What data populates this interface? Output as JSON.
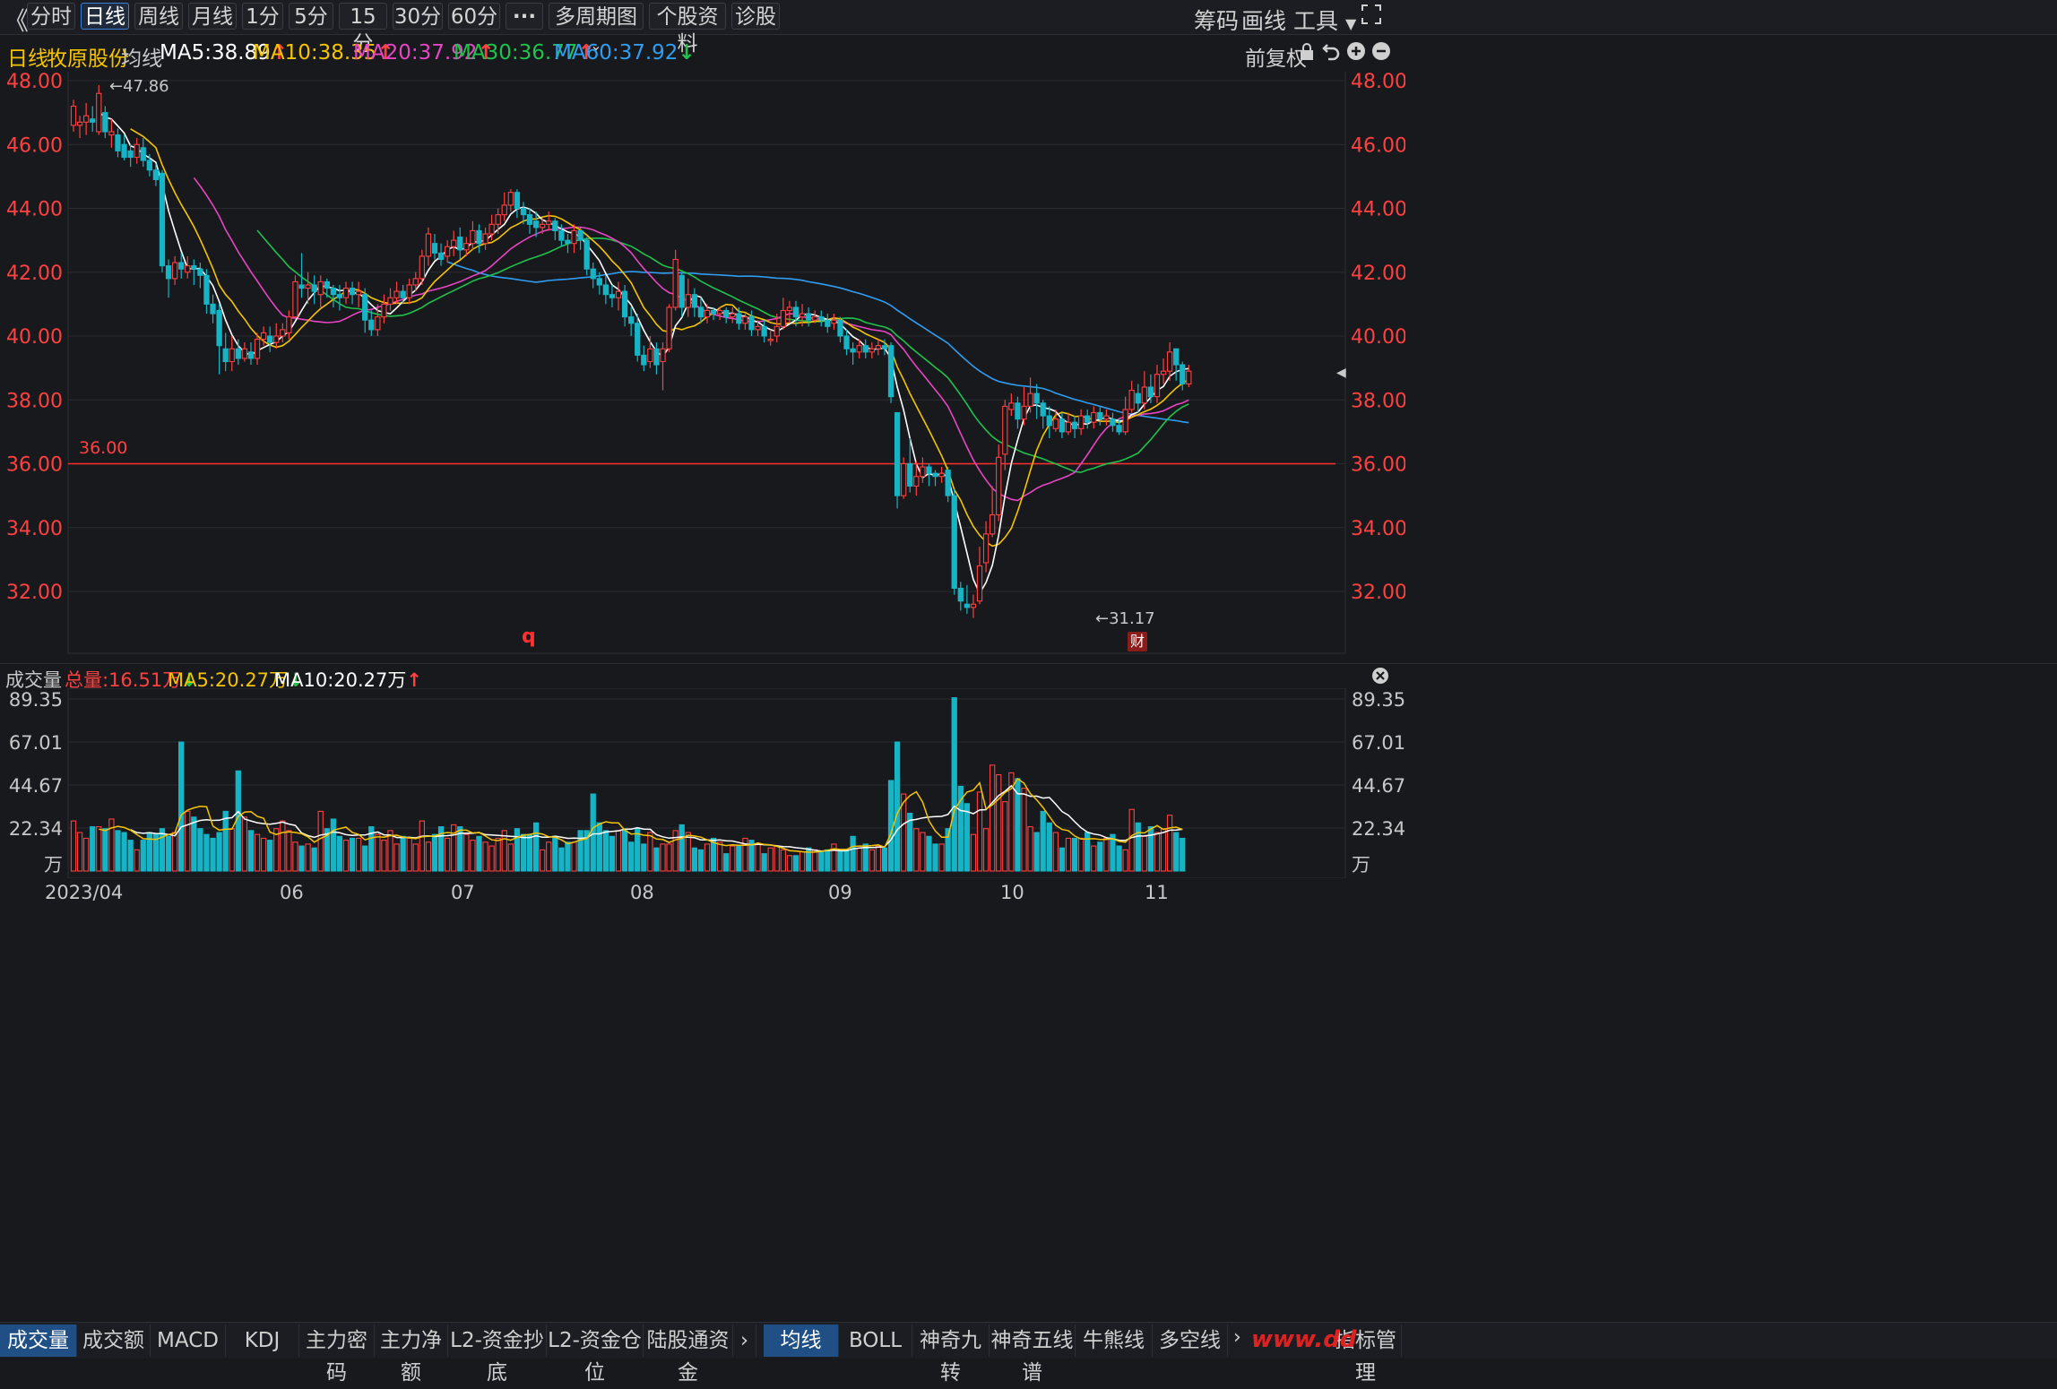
{
  "toolbar": {
    "back_icon": "double-chevron-left-icon",
    "periods": [
      "分时",
      "日线",
      "周线",
      "月线",
      "1分",
      "5分",
      "15分",
      "30分",
      "60分"
    ],
    "active_period": "日线",
    "more_label": "···",
    "multi_period_label": "多周期图",
    "profile_label": "个股资料",
    "diagnose_label": "诊股",
    "chips_label": "筹码",
    "draw_label": "画线",
    "tools_label": "工具"
  },
  "ma_bar": {
    "period": "日线",
    "stock_name": "牧原股份",
    "ma_title": "均线",
    "ma5": "MA5:38.89",
    "ma10": "MA10:38.35",
    "ma20": "MA20:37.92",
    "ma30": "MA30:36.77",
    "ma60": "MA60:37.92",
    "adjust_label": "前复权"
  },
  "price_axis": [
    "48.00",
    "46.00",
    "44.00",
    "42.00",
    "40.00",
    "38.00",
    "36.00",
    "34.00",
    "32.00"
  ],
  "annotations": {
    "high": "47.86",
    "low": "31.17",
    "line_value": "36.00",
    "marker_q": "q",
    "finance_badge": "财"
  },
  "volume_bar": {
    "title": "成交量",
    "total": "总量:16.51万",
    "ma5": "MA5:20.27万",
    "ma10": "MA10:20.27万"
  },
  "volume_axis": [
    "89.35",
    "67.01",
    "44.67",
    "22.34",
    "万"
  ],
  "date_axis": [
    "2023/04",
    "06",
    "07",
    "08",
    "09",
    "10",
    "11"
  ],
  "bottom_tabs_left": [
    "成交量",
    "成交额",
    "MACD",
    "KDJ",
    "主力密码",
    "主力净额",
    "L2-资金抄底",
    "L2-资金仓位",
    "陆股通资金"
  ],
  "bottom_tabs_right": [
    "均线",
    "BOLL",
    "神奇九转",
    "神奇五线谱",
    "牛熊线",
    "多空线",
    "指标管理"
  ],
  "watermark": "www.dd",
  "colors": {
    "up": "#ff4040",
    "down": "#17b4c6",
    "ma5": "#ffffff",
    "ma10": "#f5c400",
    "ma20": "#e845c4",
    "ma30": "#1fc24c",
    "ma60": "#2f9ef2",
    "grid": "#2a2c31",
    "hline": "#ff3030"
  },
  "chart_data": {
    "type": "candlestick",
    "title": "牧原股份 日线",
    "ylim": [
      30.6,
      48.6
    ],
    "vol_ylim": [
      0,
      89.35
    ],
    "x_ticks": [
      "2023/04",
      "06",
      "07",
      "08",
      "09",
      "10",
      "11"
    ],
    "hline": 36.0,
    "candles": [
      [
        46.6,
        47.2,
        47.4,
        46.4
      ],
      [
        46.6,
        46.7,
        46.9,
        46.2
      ],
      [
        46.7,
        46.9,
        47.3,
        46.3
      ],
      [
        46.8,
        46.7,
        47.2,
        46.4
      ],
      [
        46.4,
        47.6,
        47.86,
        46.3
      ],
      [
        47.0,
        46.4,
        47.2,
        46.2
      ],
      [
        46.3,
        46.4,
        46.8,
        45.9
      ],
      [
        46.3,
        45.8,
        46.5,
        45.6
      ],
      [
        46.0,
        45.6,
        46.3,
        45.5
      ],
      [
        45.8,
        45.6,
        46.0,
        45.3
      ],
      [
        45.6,
        46.0,
        46.2,
        45.4
      ],
      [
        45.9,
        45.5,
        46.2,
        45.3
      ],
      [
        45.5,
        45.2,
        45.7,
        45.0
      ],
      [
        45.2,
        44.9,
        45.4,
        44.7
      ],
      [
        45.1,
        42.2,
        45.2,
        42.0
      ],
      [
        42.2,
        41.8,
        42.4,
        41.2
      ],
      [
        41.8,
        42.3,
        42.5,
        41.6
      ],
      [
        42.3,
        42.1,
        42.6,
        41.8
      ],
      [
        42.0,
        42.2,
        42.5,
        41.8
      ],
      [
        42.2,
        42.1,
        42.4,
        41.6
      ],
      [
        42.1,
        41.9,
        42.3,
        41.5
      ],
      [
        41.9,
        41.0,
        42.1,
        40.7
      ],
      [
        41.0,
        40.7,
        41.3,
        40.4
      ],
      [
        40.8,
        39.7,
        41.0,
        38.8
      ],
      [
        39.6,
        39.2,
        40.1,
        38.9
      ],
      [
        39.2,
        39.6,
        40.0,
        38.9
      ],
      [
        39.6,
        39.3,
        39.9,
        39.1
      ],
      [
        39.3,
        39.6,
        39.8,
        39.2
      ],
      [
        39.5,
        39.3,
        39.8,
        39.1
      ],
      [
        39.3,
        39.9,
        40.1,
        39.1
      ],
      [
        39.9,
        40.1,
        40.3,
        39.7
      ],
      [
        40.0,
        39.8,
        40.3,
        39.5
      ],
      [
        39.8,
        40.0,
        40.4,
        39.6
      ],
      [
        40.0,
        40.2,
        40.4,
        39.8
      ],
      [
        40.1,
        40.6,
        40.8,
        39.9
      ],
      [
        40.6,
        41.7,
        41.9,
        40.5
      ],
      [
        41.6,
        41.5,
        42.6,
        41.2
      ],
      [
        41.5,
        41.6,
        42.0,
        41.0
      ],
      [
        41.6,
        41.4,
        41.9,
        41.0
      ],
      [
        41.3,
        41.7,
        41.9,
        40.9
      ],
      [
        41.7,
        41.5,
        41.8,
        41.2
      ],
      [
        41.5,
        41.3,
        41.6,
        40.9
      ],
      [
        41.3,
        41.2,
        41.6,
        40.8
      ],
      [
        41.2,
        41.5,
        41.7,
        41.0
      ],
      [
        41.5,
        41.3,
        41.7,
        41.0
      ],
      [
        41.3,
        41.4,
        41.7,
        40.9
      ],
      [
        41.3,
        40.5,
        41.5,
        40.1
      ],
      [
        40.5,
        40.2,
        40.8,
        40.0
      ],
      [
        40.2,
        40.6,
        41.0,
        40.0
      ],
      [
        40.6,
        41.0,
        41.3,
        40.4
      ],
      [
        41.0,
        41.2,
        41.5,
        40.8
      ],
      [
        41.2,
        41.4,
        41.7,
        41.0
      ],
      [
        41.4,
        41.2,
        41.6,
        41.0
      ],
      [
        41.2,
        41.6,
        41.8,
        41.0
      ],
      [
        41.6,
        41.8,
        42.0,
        41.4
      ],
      [
        41.8,
        42.5,
        42.7,
        41.6
      ],
      [
        42.5,
        43.2,
        43.4,
        42.2
      ],
      [
        42.9,
        42.6,
        43.2,
        42.4
      ],
      [
        42.6,
        42.4,
        42.9,
        42.2
      ],
      [
        42.5,
        42.8,
        43.0,
        42.3
      ],
      [
        42.8,
        43.0,
        43.3,
        42.5
      ],
      [
        43.1,
        42.7,
        43.4,
        42.4
      ],
      [
        42.7,
        42.9,
        43.1,
        42.5
      ],
      [
        42.9,
        43.3,
        43.6,
        42.7
      ],
      [
        43.3,
        42.9,
        43.5,
        42.6
      ],
      [
        42.9,
        43.2,
        43.4,
        42.7
      ],
      [
        43.2,
        43.5,
        43.8,
        43.0
      ],
      [
        43.5,
        43.8,
        44.0,
        43.2
      ],
      [
        43.8,
        44.1,
        44.5,
        43.6
      ],
      [
        44.1,
        44.5,
        44.6,
        43.9
      ],
      [
        44.5,
        44.0,
        44.6,
        43.7
      ],
      [
        44.0,
        43.8,
        44.2,
        43.5
      ],
      [
        43.8,
        43.5,
        44.0,
        43.2
      ],
      [
        43.6,
        43.4,
        43.9,
        43.1
      ],
      [
        43.4,
        43.5,
        43.7,
        43.2
      ],
      [
        43.5,
        43.6,
        43.9,
        43.3
      ],
      [
        43.6,
        43.3,
        43.7,
        43.0
      ],
      [
        43.3,
        43.0,
        43.5,
        42.8
      ],
      [
        43.0,
        42.9,
        43.2,
        42.6
      ],
      [
        42.9,
        43.3,
        43.5,
        42.6
      ],
      [
        43.3,
        43.0,
        43.4,
        42.7
      ],
      [
        43.0,
        42.1,
        43.1,
        41.9
      ],
      [
        42.1,
        41.8,
        42.3,
        41.5
      ],
      [
        41.8,
        41.6,
        42.0,
        41.3
      ],
      [
        41.6,
        41.3,
        41.9,
        41.0
      ],
      [
        41.3,
        41.2,
        41.6,
        40.9
      ],
      [
        41.2,
        41.4,
        41.7,
        40.8
      ],
      [
        41.4,
        40.6,
        41.6,
        40.3
      ],
      [
        40.6,
        40.4,
        40.9,
        40.0
      ],
      [
        40.4,
        39.4,
        40.7,
        39.2
      ],
      [
        39.4,
        39.1,
        39.7,
        38.9
      ],
      [
        39.2,
        39.6,
        40.0,
        39.0
      ],
      [
        39.6,
        39.1,
        39.8,
        38.8
      ],
      [
        39.2,
        39.6,
        39.8,
        38.3
      ],
      [
        39.6,
        40.9,
        41.0,
        39.5
      ],
      [
        40.9,
        42.4,
        42.7,
        40.8
      ],
      [
        41.9,
        40.9,
        42.0,
        40.6
      ],
      [
        40.9,
        41.3,
        41.8,
        40.6
      ],
      [
        41.3,
        40.9,
        41.5,
        40.6
      ],
      [
        40.9,
        40.6,
        41.2,
        40.4
      ],
      [
        40.6,
        40.8,
        41.0,
        40.4
      ],
      [
        40.8,
        40.7,
        40.9,
        40.5
      ],
      [
        40.7,
        40.8,
        40.9,
        40.5
      ],
      [
        40.8,
        40.6,
        40.9,
        40.4
      ],
      [
        40.6,
        40.7,
        40.9,
        40.4
      ],
      [
        40.7,
        40.4,
        40.9,
        40.2
      ],
      [
        40.4,
        40.6,
        40.7,
        40.2
      ],
      [
        40.6,
        40.2,
        40.8,
        40.0
      ],
      [
        40.2,
        40.3,
        40.5,
        40.0
      ],
      [
        40.3,
        40.0,
        40.5,
        39.8
      ],
      [
        39.9,
        39.9,
        40.2,
        39.7
      ],
      [
        40.0,
        40.3,
        40.7,
        39.8
      ],
      [
        40.3,
        40.8,
        41.2,
        40.2
      ],
      [
        40.8,
        40.9,
        41.1,
        40.4
      ],
      [
        40.9,
        40.6,
        41.1,
        40.3
      ],
      [
        40.6,
        40.7,
        41.0,
        40.3
      ],
      [
        40.7,
        40.5,
        40.9,
        40.3
      ],
      [
        40.5,
        40.6,
        40.8,
        40.4
      ],
      [
        40.6,
        40.5,
        40.8,
        40.3
      ],
      [
        40.5,
        40.3,
        40.7,
        40.1
      ],
      [
        40.4,
        40.5,
        40.7,
        40.2
      ],
      [
        40.5,
        40.0,
        40.6,
        39.8
      ],
      [
        40.0,
        39.6,
        40.2,
        39.4
      ],
      [
        39.6,
        39.5,
        39.8,
        39.1
      ],
      [
        39.5,
        39.7,
        39.9,
        39.3
      ],
      [
        39.7,
        39.5,
        39.9,
        39.3
      ],
      [
        39.5,
        39.6,
        39.8,
        39.3
      ],
      [
        39.6,
        39.7,
        39.9,
        39.4
      ],
      [
        39.7,
        39.6,
        39.9,
        39.4
      ],
      [
        39.7,
        38.1,
        39.8,
        37.9
      ],
      [
        37.6,
        35.0,
        37.6,
        34.6
      ],
      [
        35.0,
        36.0,
        36.2,
        34.9
      ],
      [
        36.0,
        35.3,
        36.8,
        35.1
      ],
      [
        35.3,
        35.6,
        36.1,
        35.0
      ],
      [
        35.6,
        35.9,
        36.2,
        35.4
      ],
      [
        35.9,
        35.7,
        36.0,
        35.3
      ],
      [
        35.7,
        35.6,
        35.8,
        35.3
      ],
      [
        35.6,
        35.7,
        35.9,
        35.4
      ],
      [
        35.8,
        35.0,
        35.9,
        34.8
      ],
      [
        35.0,
        32.1,
        35.2,
        31.9
      ],
      [
        32.1,
        31.7,
        32.3,
        31.4
      ],
      [
        31.6,
        31.5,
        32.2,
        31.3
      ],
      [
        31.5,
        31.6,
        31.9,
        31.17
      ],
      [
        31.7,
        32.8,
        33.4,
        31.6
      ],
      [
        32.9,
        33.8,
        34.2,
        32.6
      ],
      [
        33.8,
        34.4,
        35.3,
        33.7
      ],
      [
        34.4,
        36.2,
        36.6,
        34.2
      ],
      [
        36.3,
        37.8,
        38.0,
        35.8
      ],
      [
        37.7,
        37.9,
        38.2,
        37.5
      ],
      [
        37.9,
        37.4,
        38.1,
        37.1
      ],
      [
        37.4,
        37.8,
        38.4,
        37.2
      ],
      [
        37.8,
        38.2,
        38.7,
        37.6
      ],
      [
        38.2,
        37.9,
        38.5,
        37.4
      ],
      [
        37.9,
        37.5,
        38.0,
        37.1
      ],
      [
        37.5,
        37.2,
        37.8,
        36.8
      ],
      [
        37.1,
        37.4,
        37.7,
        37.0
      ],
      [
        37.4,
        37.0,
        37.6,
        36.8
      ],
      [
        37.0,
        37.3,
        37.6,
        36.9
      ],
      [
        37.3,
        37.1,
        37.5,
        36.8
      ],
      [
        37.1,
        37.5,
        37.7,
        36.9
      ],
      [
        37.5,
        37.3,
        37.7,
        37.1
      ],
      [
        37.3,
        37.6,
        37.8,
        37.1
      ],
      [
        37.6,
        37.4,
        37.8,
        37.2
      ],
      [
        37.4,
        37.5,
        37.7,
        37.2
      ],
      [
        37.4,
        37.2,
        37.6,
        37.0
      ],
      [
        37.2,
        37.0,
        37.4,
        36.9
      ],
      [
        37.0,
        37.7,
        38.1,
        36.9
      ],
      [
        37.7,
        38.3,
        38.6,
        37.6
      ],
      [
        38.2,
        37.9,
        38.5,
        37.6
      ],
      [
        37.9,
        38.4,
        38.9,
        37.7
      ],
      [
        38.4,
        38.1,
        38.8,
        37.9
      ],
      [
        38.1,
        38.8,
        39.1,
        37.9
      ],
      [
        38.8,
        38.9,
        39.3,
        38.5
      ],
      [
        38.9,
        39.5,
        39.8,
        38.6
      ],
      [
        39.6,
        39.1,
        39.6,
        38.6
      ],
      [
        39.1,
        38.5,
        39.2,
        38.3
      ],
      [
        38.5,
        38.9,
        39.1,
        38.4
      ]
    ],
    "volumes": [
      26,
      20,
      17,
      23,
      23,
      22,
      27,
      21,
      20,
      16,
      11,
      16,
      20,
      19,
      22,
      18,
      20,
      67,
      31,
      28,
      22,
      19,
      17,
      20,
      31,
      22,
      52,
      28,
      21,
      19,
      17,
      16,
      22,
      26,
      21,
      15,
      13,
      14,
      12,
      31,
      22,
      27,
      18,
      16,
      17,
      17,
      13,
      23,
      19,
      16,
      21,
      14,
      18,
      17,
      14,
      26,
      15,
      19,
      23,
      17,
      24,
      23,
      19,
      16,
      18,
      15,
      13,
      17,
      21,
      14,
      22,
      19,
      19,
      25,
      11,
      15,
      18,
      12,
      15,
      15,
      21,
      21,
      40,
      25,
      21,
      18,
      21,
      21,
      15,
      22,
      14,
      20,
      12,
      14,
      14,
      21,
      24,
      20,
      12,
      11,
      14,
      17,
      15,
      9,
      13,
      13,
      17,
      16,
      14,
      9,
      12,
      13,
      11,
      8,
      8,
      10,
      12,
      11,
      10,
      11,
      14,
      10,
      11,
      18,
      12,
      14,
      11,
      13,
      12,
      47,
      67,
      40,
      30,
      22,
      20,
      18,
      14,
      14,
      22,
      90,
      44,
      35,
      19,
      41,
      22,
      55,
      50,
      36,
      51,
      48,
      43,
      23,
      20,
      31,
      25,
      20,
      12,
      17,
      17,
      17,
      20,
      13,
      15,
      17,
      19,
      13,
      11,
      32,
      25,
      18,
      23,
      20,
      22,
      29,
      20,
      17
    ]
  }
}
